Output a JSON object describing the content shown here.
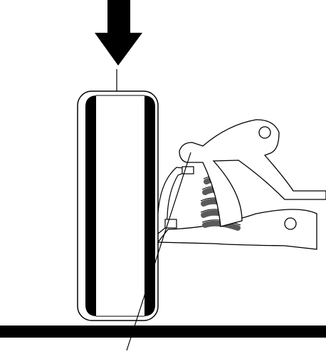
{
  "figure": {
    "colors": {
      "ink": "#000000",
      "paper": "#ffffff",
      "spring": "#5a5a5a"
    },
    "elements": [
      "load-arrow",
      "wheel-vertical-centerline",
      "tire-front-view",
      "ground-line",
      "steering-axis-line",
      "upper-control-arm",
      "lower-control-arm",
      "coil-spring",
      "steering-knuckle",
      "ball-joints"
    ]
  }
}
